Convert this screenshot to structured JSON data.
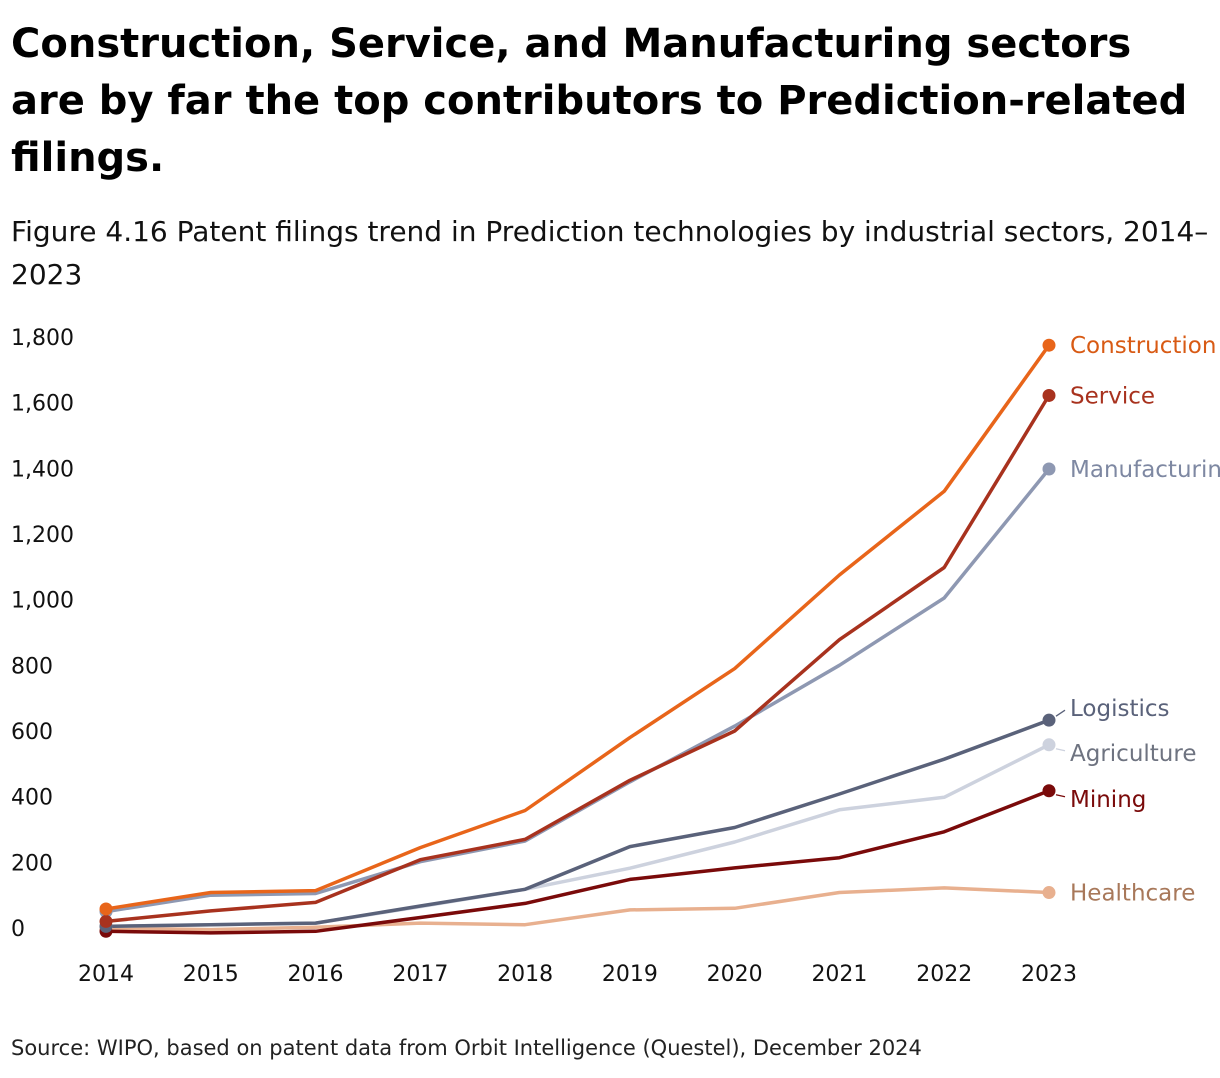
{
  "headline": "Construction, Service, and Manufacturing sectors are by far the top contributors to Prediction-related filings.",
  "source": "Source: WIPO, based on patent data from Orbit Intelligence (Questel), December 2024",
  "chart_data": {
    "type": "line",
    "title": "Figure 4.16 Patent filings trend in Prediction technologies by industrial sectors, 2014–2023",
    "xlabel": "",
    "ylabel": "",
    "x": [
      "2014",
      "2015",
      "2016",
      "2017",
      "2018",
      "2019",
      "2020",
      "2021",
      "2022",
      "2023"
    ],
    "ylim": [
      0,
      1800
    ],
    "yticks": [
      0,
      200,
      400,
      600,
      800,
      1000,
      1200,
      1400,
      1600,
      1800
    ],
    "ytick_labels": [
      "0",
      "200",
      "400",
      "600",
      "800",
      "1,000",
      "1,200",
      "1,400",
      "1,600",
      "1,800"
    ],
    "grid": false,
    "legend": "direct labels at line ends (right)",
    "series": [
      {
        "name": "Healthcare",
        "label": "Healthcare",
        "color": "#E8B08F",
        "label_color": "#A8785A",
        "values": [
          0,
          -5,
          2,
          15,
          10,
          55,
          60,
          108,
          122,
          108
        ]
      },
      {
        "name": "Agriculture",
        "label": "Agriculture",
        "color": "#CDD2DE",
        "label_color": "#6E7380",
        "values": [
          5,
          10,
          15,
          65,
          118,
          182,
          262,
          360,
          398,
          558
        ]
      },
      {
        "name": "Mining",
        "label": "Mining",
        "color": "#7A0A0A",
        "label_color": "#7A0A0A",
        "values": [
          -10,
          -15,
          -10,
          32,
          75,
          148,
          183,
          214,
          293,
          418
        ]
      },
      {
        "name": "Logistics",
        "label": "Logistics",
        "color": "#5A627A",
        "label_color": "#5A627A",
        "values": [
          5,
          10,
          15,
          67,
          118,
          248,
          306,
          408,
          514,
          633
        ]
      },
      {
        "name": "Manufacturing",
        "label": "Manufacturing",
        "color": "#8E98B2",
        "label_color": "#7E88A2",
        "values": [
          50,
          100,
          105,
          202,
          265,
          445,
          615,
          800,
          1005,
          1398
        ]
      },
      {
        "name": "Service",
        "label": "Service",
        "color": "#A8321E",
        "label_color": "#A8321E",
        "values": [
          20,
          52,
          78,
          208,
          270,
          450,
          600,
          878,
          1098,
          1622
        ]
      },
      {
        "name": "Construction",
        "label": "Construction",
        "color": "#E8651A",
        "label_color": "#D85A14",
        "values": [
          58,
          108,
          114,
          245,
          358,
          580,
          790,
          1075,
          1330,
          1775
        ]
      }
    ]
  }
}
